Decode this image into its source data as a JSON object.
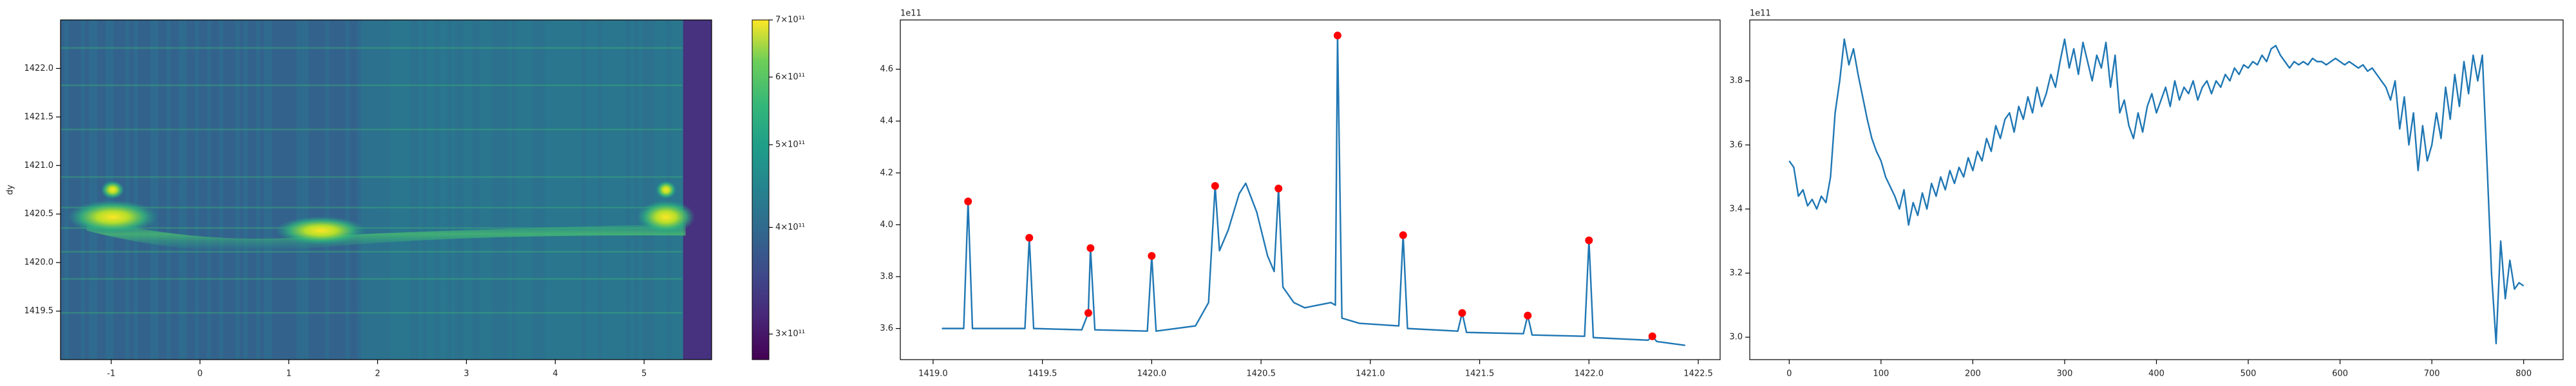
{
  "chart_data": [
    {
      "type": "heatmap",
      "ylabel": "dy",
      "xlim": [
        -1.57,
        5.76
      ],
      "xticks": [
        -1,
        0,
        1,
        2,
        3,
        4,
        5
      ],
      "ylim": [
        1419.0,
        1422.5
      ],
      "yticks": [
        1419.5,
        {
          "value": 1420.0,
          "label": "1420.0"
        },
        1420.5,
        {
          "value": 1421.0,
          "label": "1421.0"
        },
        1421.5,
        {
          "value": 1422.0,
          "label": "1422.0"
        }
      ],
      "colorbar": {
        "scale": "log",
        "colormap": "viridis",
        "lim": [
          280000000000,
          700000000000
        ],
        "ticks": [
          {
            "value": 300000000000,
            "label": "3×10¹¹"
          },
          {
            "value": 400000000000,
            "label": "4×10¹¹"
          },
          {
            "value": 500000000000,
            "label": "5×10¹¹"
          },
          {
            "value": 600000000000,
            "label": "6×10¹¹"
          },
          {
            "value": 700000000000,
            "label": "7×10¹¹"
          }
        ]
      }
    },
    {
      "type": "line",
      "offset_label": "1e11",
      "color": "#1f77b4",
      "x": [
        1419.04,
        1419.14,
        1419.16,
        1419.18,
        1419.42,
        1419.44,
        1419.46,
        1419.68,
        1419.71,
        1419.72,
        1419.74,
        1419.98,
        1420.0,
        1420.02,
        1420.2,
        1420.26,
        1420.29,
        1420.31,
        1420.35,
        1420.4,
        1420.43,
        1420.48,
        1420.53,
        1420.56,
        1420.58,
        1420.6,
        1420.65,
        1420.7,
        1420.76,
        1420.82,
        1420.84,
        1420.85,
        1420.87,
        1420.95,
        1421.13,
        1421.15,
        1421.17,
        1421.4,
        1421.42,
        1421.44,
        1421.7,
        1421.72,
        1421.74,
        1421.98,
        1422.0,
        1422.02,
        1422.27,
        1422.29,
        1422.31,
        1422.44
      ],
      "values": [
        3.6,
        3.6,
        4.09,
        3.6,
        3.6,
        3.95,
        3.6,
        3.595,
        3.66,
        3.91,
        3.595,
        3.59,
        3.88,
        3.59,
        3.61,
        3.7,
        4.15,
        3.9,
        3.98,
        4.12,
        4.16,
        4.05,
        3.88,
        3.82,
        4.14,
        3.76,
        3.7,
        3.68,
        3.69,
        3.7,
        3.69,
        4.73,
        3.64,
        3.62,
        3.61,
        3.96,
        3.6,
        3.59,
        3.66,
        3.585,
        3.58,
        3.65,
        3.575,
        3.57,
        3.94,
        3.565,
        3.555,
        3.57,
        3.55,
        3.535
      ],
      "peaks": {
        "color": "red",
        "x": [
          1419.16,
          1419.44,
          1419.71,
          1419.72,
          1420.0,
          1420.29,
          1420.58,
          1420.85,
          1421.15,
          1421.42,
          1421.72,
          1422.0,
          1422.29
        ],
        "values": [
          4.09,
          3.95,
          3.66,
          3.91,
          3.88,
          4.15,
          4.14,
          4.73,
          3.96,
          3.66,
          3.65,
          3.94,
          3.57
        ]
      },
      "xlim": [
        1418.85,
        1422.6
      ],
      "xticks": [
        {
          "value": 1419.0,
          "label": "1419.0"
        },
        1419.5,
        {
          "value": 1420.0,
          "label": "1420.0"
        },
        1420.5,
        {
          "value": 1421.0,
          "label": "1421.0"
        },
        1421.5,
        {
          "value": 1422.0,
          "label": "1422.0"
        },
        1422.5
      ],
      "ylim": [
        3.48,
        4.79
      ],
      "yticks": [
        3.6,
        3.8,
        {
          "value": 4.0,
          "label": "4.0"
        },
        4.2,
        4.4,
        4.6
      ]
    },
    {
      "type": "line",
      "offset_label": "1e11",
      "color": "#1f77b4",
      "x": [
        0,
        5,
        10,
        15,
        20,
        25,
        30,
        35,
        40,
        45,
        50,
        55,
        60,
        65,
        70,
        75,
        80,
        85,
        90,
        95,
        100,
        105,
        110,
        115,
        120,
        125,
        130,
        135,
        140,
        145,
        150,
        155,
        160,
        165,
        170,
        175,
        180,
        185,
        190,
        195,
        200,
        205,
        210,
        215,
        220,
        225,
        230,
        235,
        240,
        245,
        250,
        255,
        260,
        265,
        270,
        275,
        280,
        285,
        290,
        295,
        300,
        305,
        310,
        315,
        320,
        325,
        330,
        335,
        340,
        345,
        350,
        355,
        360,
        365,
        370,
        375,
        380,
        385,
        390,
        395,
        400,
        405,
        410,
        415,
        420,
        425,
        430,
        435,
        440,
        445,
        450,
        455,
        460,
        465,
        470,
        475,
        480,
        485,
        490,
        495,
        500,
        505,
        510,
        515,
        520,
        525,
        530,
        535,
        540,
        545,
        550,
        555,
        560,
        565,
        570,
        575,
        580,
        585,
        590,
        595,
        600,
        605,
        610,
        615,
        620,
        625,
        630,
        635,
        640,
        645,
        650,
        655,
        660,
        665,
        670,
        675,
        680,
        685,
        690,
        695,
        700,
        705,
        710,
        715,
        720,
        725,
        730,
        735,
        740,
        745,
        750,
        755,
        760,
        765,
        770,
        775,
        780,
        785,
        790,
        795,
        800
      ],
      "values": [
        3.55,
        3.53,
        3.44,
        3.46,
        3.41,
        3.43,
        3.4,
        3.44,
        3.42,
        3.5,
        3.7,
        3.8,
        3.93,
        3.85,
        3.9,
        3.82,
        3.75,
        3.68,
        3.62,
        3.58,
        3.55,
        3.5,
        3.47,
        3.44,
        3.4,
        3.46,
        3.35,
        3.42,
        3.38,
        3.45,
        3.4,
        3.48,
        3.44,
        3.5,
        3.46,
        3.52,
        3.48,
        3.53,
        3.5,
        3.56,
        3.52,
        3.58,
        3.55,
        3.62,
        3.58,
        3.66,
        3.62,
        3.68,
        3.7,
        3.64,
        3.72,
        3.68,
        3.75,
        3.7,
        3.78,
        3.72,
        3.76,
        3.82,
        3.78,
        3.86,
        3.93,
        3.84,
        3.9,
        3.82,
        3.92,
        3.86,
        3.8,
        3.88,
        3.84,
        3.92,
        3.78,
        3.88,
        3.7,
        3.74,
        3.66,
        3.62,
        3.7,
        3.64,
        3.72,
        3.76,
        3.7,
        3.74,
        3.78,
        3.72,
        3.8,
        3.74,
        3.78,
        3.76,
        3.8,
        3.74,
        3.78,
        3.8,
        3.76,
        3.8,
        3.78,
        3.82,
        3.8,
        3.84,
        3.82,
        3.85,
        3.84,
        3.86,
        3.85,
        3.88,
        3.86,
        3.9,
        3.91,
        3.88,
        3.86,
        3.84,
        3.86,
        3.85,
        3.86,
        3.85,
        3.87,
        3.86,
        3.86,
        3.85,
        3.86,
        3.87,
        3.86,
        3.85,
        3.86,
        3.85,
        3.84,
        3.85,
        3.83,
        3.84,
        3.82,
        3.8,
        3.78,
        3.74,
        3.8,
        3.65,
        3.75,
        3.6,
        3.7,
        3.52,
        3.66,
        3.55,
        3.6,
        3.7,
        3.62,
        3.78,
        3.68,
        3.82,
        3.72,
        3.86,
        3.76,
        3.88,
        3.8,
        3.88,
        3.55,
        3.2,
        2.98,
        3.3,
        3.12,
        3.24,
        3.15,
        3.17,
        3.16
      ],
      "xlim": [
        -43,
        843
      ],
      "xticks": [
        0,
        100,
        200,
        300,
        400,
        500,
        600,
        700,
        800
      ],
      "ylim": [
        2.93,
        3.99
      ],
      "yticks": [
        {
          "value": 3.0,
          "label": "3.0"
        },
        3.2,
        3.4,
        3.6,
        3.8
      ]
    }
  ]
}
